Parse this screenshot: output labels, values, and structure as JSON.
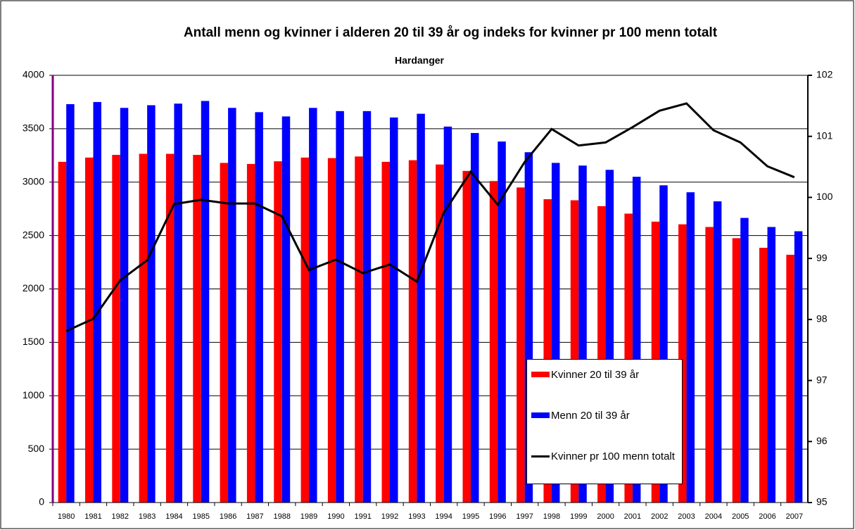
{
  "chart_data": {
    "type": "bar",
    "title": "Antall menn og kvinner i alderen 20 til 39 år og indeks for kvinner pr 100 menn totalt",
    "subtitle": "Hardanger",
    "categories": [
      "1980",
      "1981",
      "1982",
      "1983",
      "1984",
      "1985",
      "1986",
      "1987",
      "1988",
      "1989",
      "1990",
      "1991",
      "1992",
      "1993",
      "1994",
      "1995",
      "1996",
      "1997",
      "1998",
      "1999",
      "2000",
      "2001",
      "2002",
      "2003",
      "2004",
      "2005",
      "2006",
      "2007"
    ],
    "series": [
      {
        "name": "Kvinner 20 til 39 år",
        "color": "#ff0000",
        "type": "bar",
        "values": [
          3190,
          3230,
          3255,
          3265,
          3265,
          3255,
          3180,
          3170,
          3195,
          3230,
          3225,
          3240,
          3190,
          3205,
          3165,
          3105,
          3010,
          2950,
          2840,
          2830,
          2775,
          2705,
          2630,
          2605,
          2580,
          2475,
          2385,
          2320
        ]
      },
      {
        "name": "Menn 20 til 39 år",
        "color": "#0000ff",
        "type": "bar",
        "values": [
          3730,
          3750,
          3695,
          3720,
          3735,
          3760,
          3695,
          3655,
          3615,
          3695,
          3665,
          3665,
          3605,
          3640,
          3520,
          3460,
          3380,
          3280,
          3180,
          3155,
          3115,
          3050,
          2970,
          2905,
          2820,
          2665,
          2580,
          2540
        ]
      },
      {
        "name": "Kvinner pr 100 menn totalt",
        "color": "#000000",
        "type": "line",
        "axis": "y2",
        "values": [
          97.81,
          98.01,
          98.64,
          98.97,
          99.89,
          99.96,
          99.9,
          99.9,
          99.69,
          98.81,
          98.98,
          98.76,
          98.9,
          98.62,
          99.75,
          100.42,
          99.88,
          100.58,
          101.12,
          100.85,
          100.9,
          101.15,
          101.42,
          101.54,
          101.1,
          100.9,
          100.51,
          100.33
        ]
      }
    ],
    "ylim": [
      0,
      4000
    ],
    "yticks": [
      0,
      500,
      1000,
      1500,
      2000,
      2500,
      3000,
      3500,
      4000
    ],
    "y2lim": [
      95,
      102
    ],
    "y2ticks": [
      95,
      96,
      97,
      98,
      99,
      100,
      101,
      102
    ],
    "grid": true
  }
}
